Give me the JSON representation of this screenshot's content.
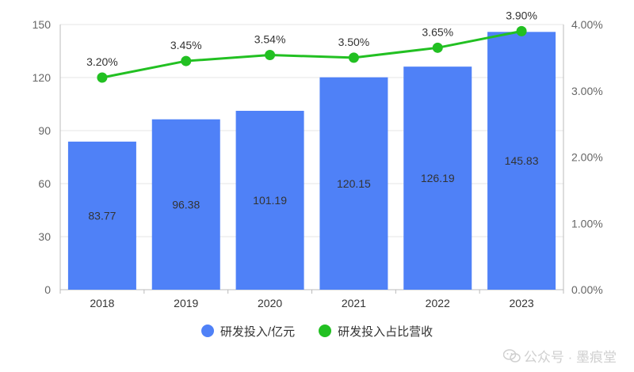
{
  "chart_data": {
    "type": "bar+line",
    "categories": [
      "2018",
      "2019",
      "2020",
      "2021",
      "2022",
      "2023"
    ],
    "bar_series": {
      "name": "研发投入/亿元",
      "values": [
        83.77,
        96.38,
        101.19,
        120.15,
        126.19,
        145.83
      ],
      "labels": [
        "83.77",
        "96.38",
        "101.19",
        "120.15",
        "126.19",
        "145.83"
      ],
      "color": "#4F81F7"
    },
    "line_series": {
      "name": "研发投入占比营收",
      "values": [
        3.2,
        3.45,
        3.54,
        3.5,
        3.65,
        3.9
      ],
      "labels": [
        "3.20%",
        "3.45%",
        "3.54%",
        "3.50%",
        "3.65%",
        "3.90%"
      ],
      "color": "#22C022"
    },
    "y_left": {
      "min": 0,
      "max": 150,
      "ticks": [
        "0",
        "30",
        "60",
        "90",
        "120",
        "150"
      ]
    },
    "y_right": {
      "min": 0,
      "max": 4,
      "ticks": [
        "0.00%",
        "1.00%",
        "2.00%",
        "3.00%",
        "4.00%"
      ]
    },
    "legend_position": "bottom"
  },
  "legend": {
    "bar_label": "研发投入/亿元",
    "line_label": "研发投入占比营收"
  },
  "watermark": {
    "text": "公众号 · 墨痕堂",
    "icon": "wechat-icon"
  },
  "colors": {
    "axis": "#bbbbbb",
    "grid": "#e6e6e6"
  }
}
